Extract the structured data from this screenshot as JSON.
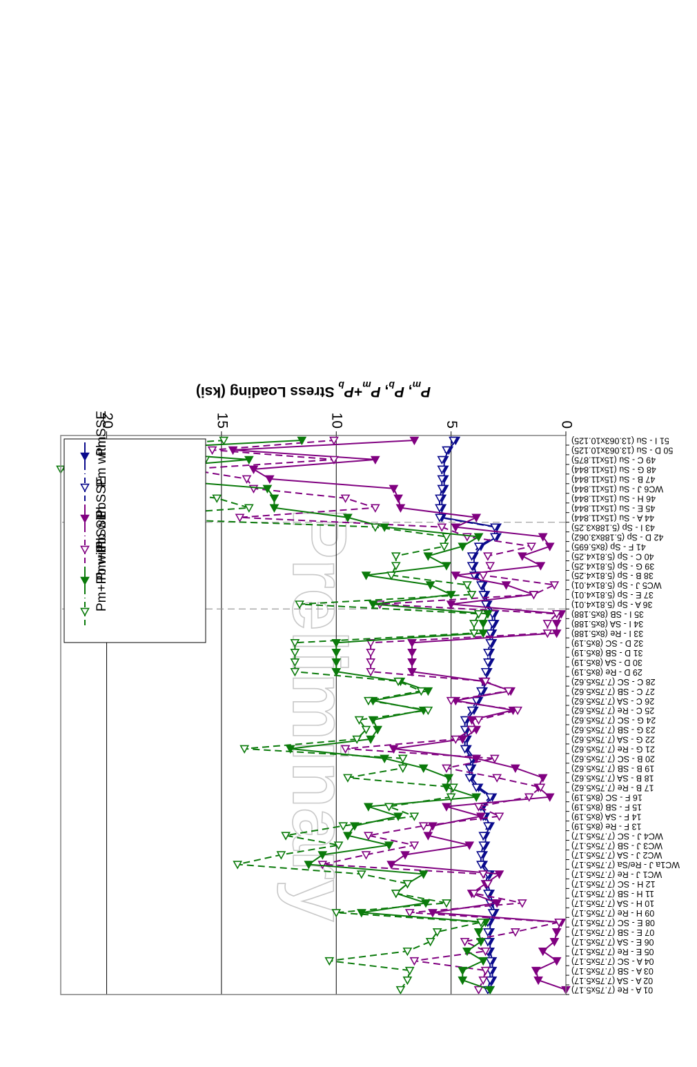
{
  "colors": {
    "pm": "#0a0a8c",
    "pb": "#800080",
    "pmpb": "#0a7a0a",
    "grid": "#000000",
    "plot_bg": "#ffffff"
  },
  "watermark": "Preliminary",
  "chart_data": {
    "type": "line",
    "orientation": "rotated 180 degrees (x axis along the right edge, reading bottom-to-top)",
    "ylabel": "P_m, P_b, P_m+P_b Stress Loading (ksi)",
    "ylabel_parts": [
      "P",
      "m",
      ", ",
      "P",
      "b",
      ", ",
      "P",
      "m",
      "+",
      "P",
      "b",
      " Stress Loading (ksi)"
    ],
    "ylim": [
      0,
      22
    ],
    "yticks": [
      0,
      5,
      10,
      15,
      20
    ],
    "grid": true,
    "legend_position": "bottom-left (as displayed)",
    "categories": [
      "01 A - Re (7.75x5.17)",
      "02 A - SA (7.75x5.17)",
      "03 A - SB (7.75x5.17)",
      "04 A - SC (7.75x5.17)",
      "05 E - Re (7.75x5.17)",
      "06 E - SA (7.75x5.17)",
      "07 E - SB (7.75x5.17)",
      "08 E - SC (7.75x5.17)",
      "09 H - Re (7.75x5.17)",
      "10 H - SA (7.75x5.17)",
      "11 H - SB (7.75x5.17)",
      "12 H - SC (7.75x5.17)",
      "WC1 J - Re (7.75x5.17)",
      "WC1a J - Re/Sa (7.75x5.17)",
      "WC2 J - SA (7.75x5.17)",
      "WC3 J - SB (7.75x5.17)",
      "WC4 J - SC (7.75x5.17)",
      "13 F - Re (8x5.19)",
      "14 F - SA (8x5.19)",
      "15 F - SB (8x5.19)",
      "16 F - SC (8x5.19)",
      "17 B - Re (7.75x5.62)",
      "18 B - SA (7.75x5.62)",
      "19 B - SB (7.75x5.62)",
      "20 B - SC (7.75x5.62)",
      "21 G - Re (7.75x5.62)",
      "22 G - SA (7.75x5.62)",
      "23 G - SB (7.75x5.62)",
      "24 G - SC (7.75x5.62)",
      "25 C - Re (7.75x5.62)",
      "26 C - SA (7.75x5.62)",
      "27 C - SB (7.75x5.62)",
      "28 C - SC (7.75x5.62)",
      "29 D - Re (8x5.19)",
      "30 D - SA (8x5.19)",
      "31 D - SB (8x5.19)",
      "32 D - SC (8x5.19)",
      "33 I - Re (8x5.188)",
      "34 I - SA (8x5.188)",
      "35 I - SB (8x5.188)",
      "36 A - Sp (5.81x4.01)",
      "37 E - Sp (5.81x4.01)",
      "WC5 J - Sp (5.81x4.01)",
      "38 B - Sp (5.81x4.25)",
      "39 G - Sp (5.81x4.25)",
      "40 C - Sp (5.81x4.25)",
      "41 F - Sp (8x5.695)",
      "42 D - Sp (5.188x3.062)",
      "43 I - Sp (5.188x3.25)",
      "44 A - Su (15x11.844)",
      "45 E - Su (15x11.844)",
      "46 H - Su (15x11.844)",
      "WC6 J - Su (15x11.844)",
      "47 B - Su (15x11.844)",
      "48 G - Su (15x11.844)",
      "49 C - Su (15x11.875)",
      "50 D - Su (13.063x10.125)",
      "51 I - Su (13.063x10.125)"
    ],
    "group_dividers_after_index": [
      39,
      48
    ],
    "series": [
      {
        "name": "Pm",
        "style": "solid",
        "marker": "filled",
        "color_key": "pm",
        "values": [
          3.3,
          3.2,
          3.2,
          3.2,
          3.3,
          3.3,
          3.3,
          3.3,
          3.1,
          3.2,
          3.3,
          3.4,
          3.3,
          3.6,
          3.6,
          3.5,
          3.5,
          3.3,
          3.5,
          3.6,
          3.2,
          3.8,
          4.1,
          4.1,
          4.0,
          4.3,
          4.3,
          4.3,
          4.3,
          4.0,
          3.8,
          3.6,
          3.5,
          3.4,
          3.3,
          3.3,
          3.2,
          3.2,
          3.1,
          3.1,
          3.4,
          3.5,
          3.6,
          3.9,
          4.0,
          4.0,
          3.7,
          3.0,
          3.0,
          5.4,
          5.4,
          5.4,
          5.3,
          5.3,
          5.3,
          5.3,
          5.1,
          4.8
        ]
      },
      {
        "name": "Pm with SSE",
        "style": "dashed",
        "marker": "open",
        "color_key": "pm",
        "values": [
          3.4,
          3.3,
          3.3,
          3.3,
          3.4,
          3.4,
          3.4,
          3.4,
          3.2,
          3.3,
          3.4,
          3.5,
          3.4,
          3.7,
          3.7,
          3.6,
          3.6,
          3.4,
          3.6,
          3.7,
          3.3,
          3.9,
          4.2,
          4.2,
          4.1,
          4.4,
          4.4,
          4.4,
          4.4,
          4.1,
          3.9,
          3.7,
          3.6,
          3.5,
          3.4,
          3.4,
          3.3,
          3.3,
          3.2,
          3.2,
          3.5,
          3.6,
          3.7,
          4.0,
          4.1,
          4.1,
          3.8,
          3.1,
          3.1,
          5.5,
          5.5,
          5.5,
          5.4,
          5.4,
          5.4,
          5.4,
          5.2,
          4.9
        ]
      },
      {
        "name": "Pb",
        "style": "solid",
        "marker": "filled",
        "color_key": "pb",
        "values": [
          0.0,
          1.2,
          1.3,
          0.4,
          1.0,
          0.5,
          0.4,
          0.2,
          5.8,
          3.0,
          4.1,
          3.5,
          2.9,
          7.6,
          7.0,
          4.2,
          6.0,
          5.8,
          3.7,
          5.2,
          0.7,
          1.2,
          1.0,
          2.2,
          3.9,
          7.5,
          4.5,
          3.9,
          4.1,
          2.3,
          4.8,
          2.4,
          3.6,
          6.7,
          6.7,
          6.7,
          6.7,
          0.4,
          0.4,
          0.2,
          5.0,
          1.4,
          2.6,
          4.8,
          1.1,
          1.9,
          0.7,
          1.0,
          4.8,
          3.9,
          7.2,
          7.3,
          7.5,
          12.9,
          13.6,
          8.3,
          14.5,
          6.6
        ]
      },
      {
        "name": "Pb with SSE",
        "style": "dashed",
        "marker": "open",
        "color_key": "pb",
        "values": [
          3.8,
          3.6,
          3.5,
          6.6,
          3.5,
          4.4,
          2.2,
          0.3,
          6.8,
          1.9,
          4.0,
          3.4,
          3.6,
          10.6,
          8.7,
          6.6,
          8.6,
          6.2,
          2.9,
          3.8,
          1.6,
          1.1,
          3.0,
          5.2,
          3.1,
          9.6,
          4.8,
          4.1,
          3.8,
          2.1,
          5.0,
          2.5,
          3.5,
          8.5,
          8.5,
          8.5,
          8.5,
          0.8,
          0.8,
          0.4,
          8.1,
          1.4,
          0.5,
          3.6,
          3.3,
          3.4,
          1.5,
          4.3,
          5.4,
          14.2,
          8.3,
          9.6,
          13.6,
          13.9,
          16.5,
          10.1,
          15.4,
          10.1
        ]
      },
      {
        "name": "Pm+Pb",
        "style": "solid",
        "marker": "filled",
        "color_key": "pmpb",
        "values": [
          3.3,
          4.5,
          4.5,
          3.6,
          4.3,
          3.7,
          3.8,
          3.5,
          8.9,
          6.1,
          7.4,
          6.9,
          6.2,
          11.2,
          10.6,
          7.7,
          9.5,
          9.2,
          7.3,
          8.6,
          3.9,
          5.2,
          5.1,
          6.2,
          7.9,
          12.0,
          8.5,
          8.2,
          8.4,
          6.2,
          8.4,
          6.0,
          7.2,
          10.0,
          10.0,
          10.0,
          10.0,
          3.6,
          3.6,
          3.4,
          8.4,
          5.0,
          5.9,
          8.7,
          5.2,
          6.0,
          4.5,
          3.8,
          7.9,
          9.5,
          12.7,
          12.7,
          13.0,
          18.2,
          18.8,
          13.8,
          19.7,
          11.5
        ]
      },
      {
        "name": "Pm+Pb with SSE",
        "style": "dashed",
        "marker": "open",
        "color_key": "pmpb",
        "values": [
          7.2,
          6.9,
          6.8,
          10.3,
          6.9,
          5.9,
          5.6,
          3.7,
          10.0,
          5.2,
          7.4,
          6.9,
          8.9,
          14.3,
          12.4,
          9.9,
          12.2,
          9.7,
          6.6,
          7.7,
          5.0,
          4.9,
          9.5,
          7.1,
          7.1,
          14.0,
          9.1,
          8.7,
          9.0,
          6.0,
          8.6,
          6.3,
          7.3,
          11.8,
          11.8,
          11.8,
          11.8,
          4.0,
          4.0,
          3.8,
          11.6,
          4.1,
          4.3,
          7.6,
          7.4,
          7.4,
          5.3,
          5.2,
          8.3,
          19.6,
          13.8,
          15.2,
          19.1,
          19.4,
          22.0,
          15.7,
          20.5,
          14.9
        ]
      }
    ]
  }
}
